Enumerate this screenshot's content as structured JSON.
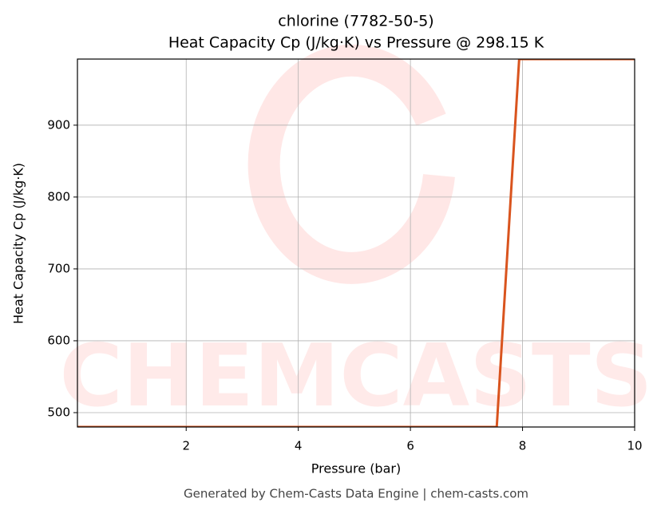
{
  "chart_data": {
    "type": "line",
    "title": "chlorine (7782-50-5)",
    "subtitle": "Heat Capacity Cp (J/kg·K) vs Pressure @ 298.15 K",
    "x_label": "Pressure (bar)",
    "y_label": "Heat Capacity Cp (J/kg·K)",
    "watermark": "CHEMCASTS",
    "footer": "Generated by Chem-Casts Data Engine | chem-casts.com",
    "x": [
      0.06,
      7.54,
      7.94,
      10
    ],
    "series": [
      {
        "name": "Cp",
        "color": "#d9541e",
        "values": [
          480,
          480,
          992,
          992
        ]
      }
    ],
    "xlim": [
      0.06,
      10
    ],
    "xticks": [
      2,
      4,
      6,
      8,
      10
    ],
    "ylim": [
      480,
      992
    ],
    "yticks": [
      500,
      600,
      700,
      800,
      900
    ],
    "grid": true
  }
}
